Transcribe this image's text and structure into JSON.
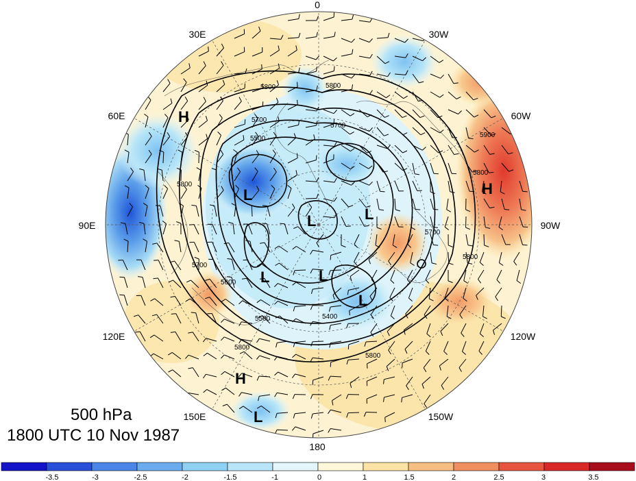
{
  "caption": {
    "level": "500 hPa",
    "time": "1800 UTC 10 Nov 1987"
  },
  "longitude_labels": [
    "0",
    "30W",
    "60W",
    "90W",
    "120W",
    "150W",
    "180",
    "150E",
    "120E",
    "90E",
    "60E",
    "30E"
  ],
  "contour_labels": [
    "5400",
    "5500",
    "5600",
    "5700",
    "5800",
    "5900"
  ],
  "pressure_centers": {
    "high": "H",
    "low": "L"
  },
  "colorbar": {
    "tick_labels": [
      "-3.5",
      "-3",
      "-2.5",
      "-2",
      "-1.5",
      "-1",
      "0",
      "1",
      "1.5",
      "2",
      "2.5",
      "3",
      "3.5"
    ],
    "colors": [
      "#1414c8",
      "#2a4fd8",
      "#4a86e8",
      "#6aacee",
      "#8fd0f5",
      "#b8e6f8",
      "#e3f6fb",
      "#fdf6d8",
      "#fbe3a6",
      "#f6be82",
      "#f09060",
      "#e8553e",
      "#d82828",
      "#a80d1c"
    ]
  }
}
